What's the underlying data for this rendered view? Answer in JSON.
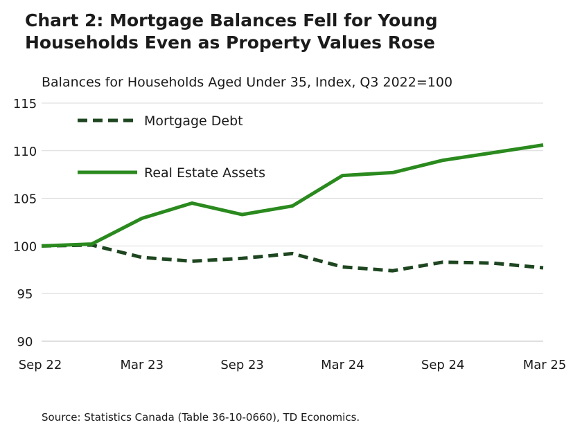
{
  "title_line1": "Chart 2: Mortgage Balances Fell for Young",
  "title_line2": "Households Even as Property Values Rose",
  "source": "Source: Statistics Canada (Table 36-10-0660), TD Economics.",
  "colors": {
    "mortgage": "#1e4620",
    "real_estate": "#2a8a1e",
    "grid": "#d9d9d9"
  },
  "chart_data": {
    "type": "line",
    "subtitle": "Balances for Households Aged Under 35,  Index, Q3 2022=100",
    "x": [
      "Sep 22",
      "Dec 22",
      "Mar 23",
      "Jun 23",
      "Sep 23",
      "Dec 23",
      "Mar 24",
      "Jun 24",
      "Sep 24",
      "Dec 24",
      "Mar 25"
    ],
    "x_tick_labels": [
      "Sep 22",
      "Mar 23",
      "Sep 23",
      "Mar 24",
      "Sep 24",
      "Mar 25"
    ],
    "ylim": [
      90,
      115
    ],
    "y_ticks": [
      90,
      95,
      100,
      105,
      110,
      115
    ],
    "grid": "horizontal",
    "legend_position": "top-left",
    "series": [
      {
        "name": "Mortgage Debt",
        "style": "dashed",
        "color": "#1e4620",
        "values": [
          100,
          100.1,
          98.8,
          98.4,
          98.7,
          99.2,
          97.8,
          97.4,
          98.3,
          98.2,
          97.7
        ]
      },
      {
        "name": "Real Estate Assets",
        "style": "solid",
        "color": "#2a8a1e",
        "values": [
          100,
          100.2,
          102.9,
          104.5,
          103.3,
          104.2,
          107.4,
          107.7,
          109.0,
          109.8,
          110.6
        ]
      }
    ]
  }
}
